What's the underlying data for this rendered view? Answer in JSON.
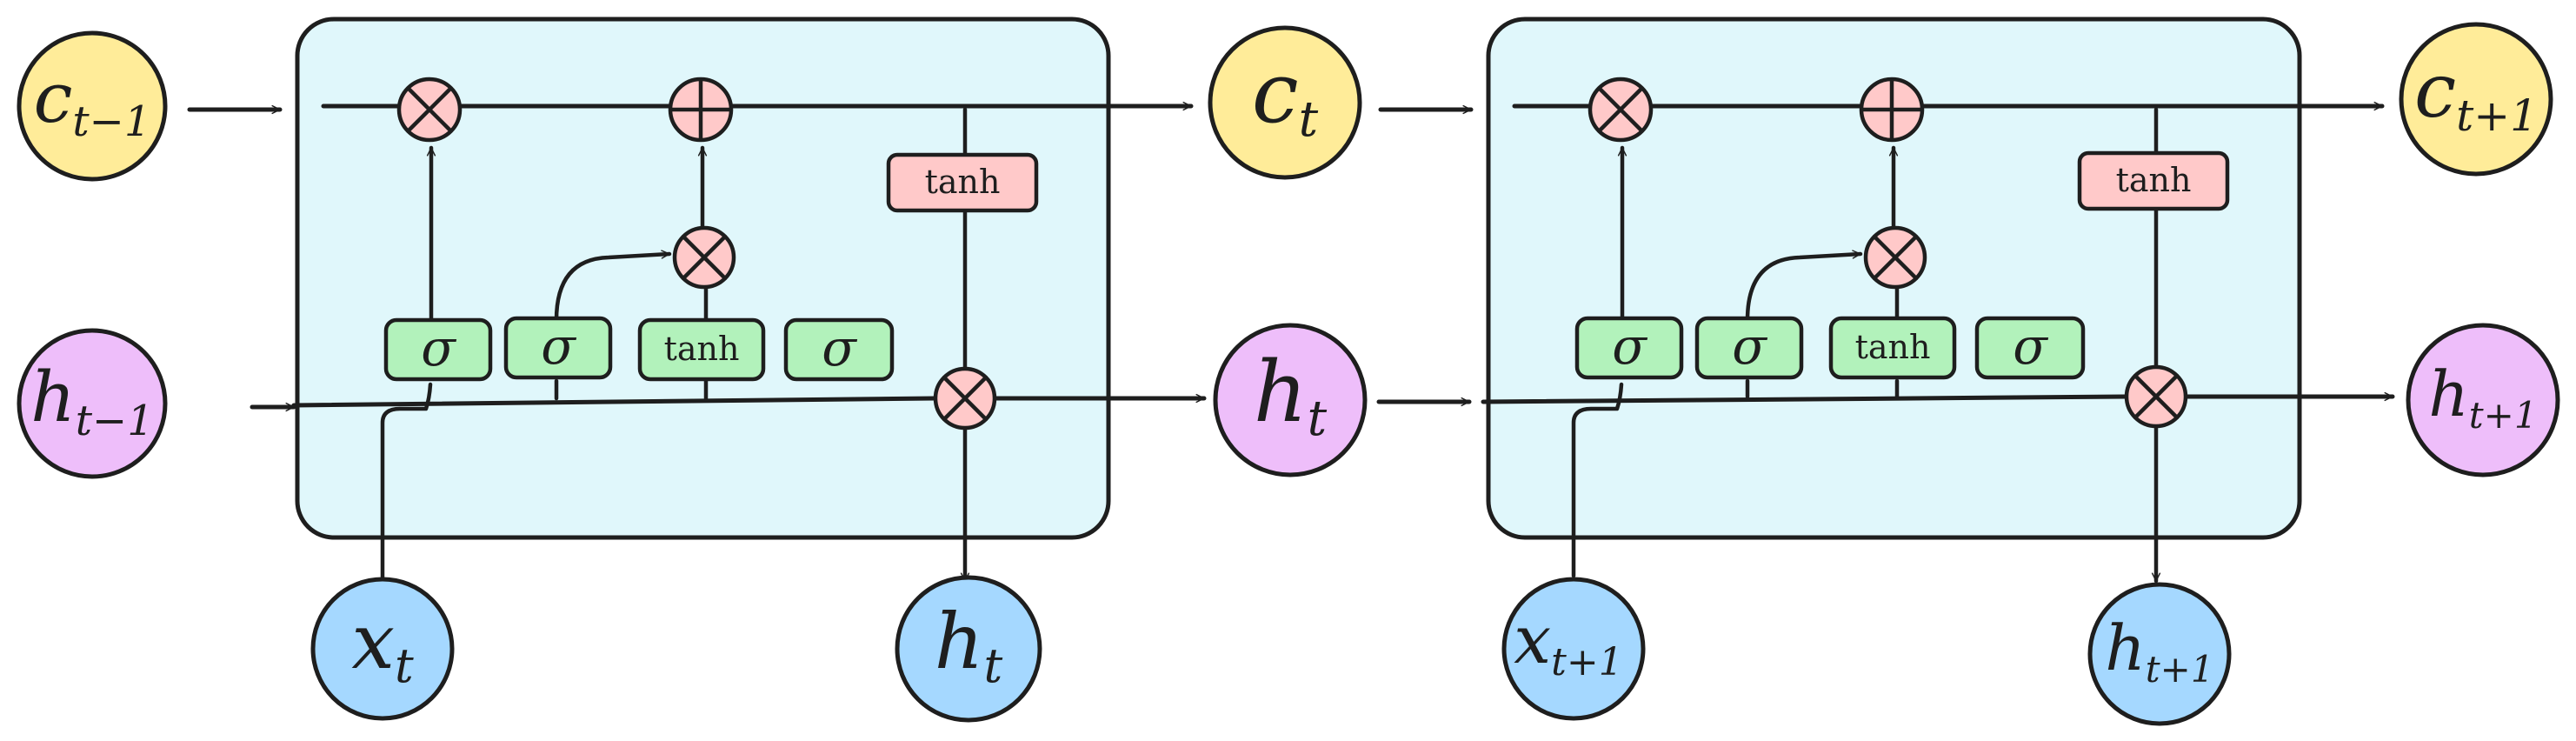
{
  "cells": [
    {
      "inputs": {
        "c_prev": {
          "var": "c",
          "sub": "t−1"
        },
        "h_prev": {
          "var": "h",
          "sub": "t−1"
        },
        "x": {
          "var": "x",
          "sub": "t"
        }
      },
      "outputs": {
        "c": {
          "var": "c",
          "sub": "t"
        },
        "h_right": {
          "var": "h",
          "sub": "t"
        },
        "h_down": {
          "var": "h",
          "sub": "t"
        }
      },
      "gates": [
        "σ",
        "σ",
        "tanh",
        "σ"
      ],
      "tanh_label": "tanh"
    },
    {
      "inputs": {
        "x": {
          "var": "x",
          "sub": "t+1"
        }
      },
      "outputs": {
        "c": {
          "var": "c",
          "sub": "t+1"
        },
        "h_right": {
          "var": "h",
          "sub": "t+1"
        },
        "h_down": {
          "var": "h",
          "sub": "t+1"
        }
      },
      "gates": [
        "σ",
        "σ",
        "tanh",
        "σ"
      ],
      "tanh_label": "tanh"
    }
  ],
  "colors": {
    "cell_fill": "#e0f7fb",
    "cell_state_node": "#ffec99",
    "hidden_state_node": "#eebefa",
    "input_node": "#a5d8ff",
    "gate_box": "#b2f2bb",
    "pointwise_op": "#ffc9c9"
  },
  "icons": {
    "multiply_op": "circled-times",
    "add_op": "circled-plus"
  }
}
